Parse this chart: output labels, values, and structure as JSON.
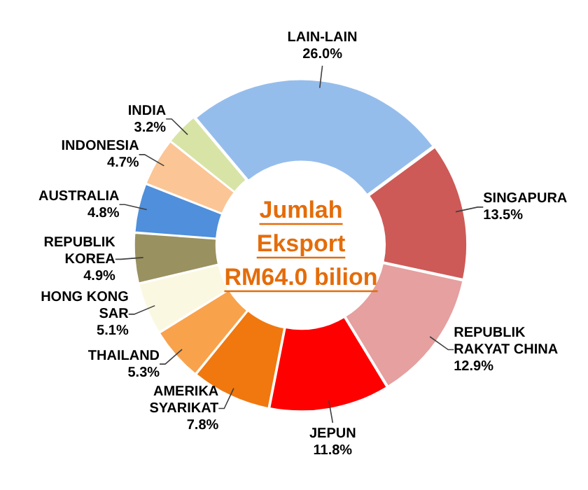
{
  "chart_data": {
    "type": "donut",
    "categories": [
      "LAIN-LAIN",
      "SINGAPURA",
      "REPUBLIK RAKYAT CHINA",
      "JEPUN",
      "AMERIKA SYARIKAT",
      "THAILAND",
      "HONG KONG SAR",
      "REPUBLIK KOREA",
      "AUSTRALIA",
      "INDONESIA",
      "INDIA"
    ],
    "values": [
      26.0,
      13.5,
      12.9,
      11.8,
      7.8,
      5.3,
      5.1,
      4.9,
      4.8,
      4.7,
      3.2
    ],
    "value_labels": [
      "26.0%",
      "13.5%",
      "12.9%",
      "11.8%",
      "7.8%",
      "5.3%",
      "5.1%",
      "4.9%",
      "4.8%",
      "4.7%",
      "3.2%"
    ],
    "colors": [
      "#95bdec",
      "#cd5a57",
      "#e5a09f",
      "#ff0000",
      "#f0780f",
      "#f9a24c",
      "#fbf8e2",
      "#9a9160",
      "#4f8fdb",
      "#fbc595",
      "#d7e4a6"
    ],
    "annotations": [
      "Jumlah Eksport RM64.0 bilion"
    ],
    "legend": false
  }
}
